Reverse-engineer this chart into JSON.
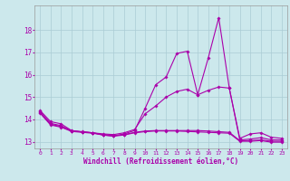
{
  "xlabel": "Windchill (Refroidissement éolien,°C)",
  "bg_color": "#cce8ec",
  "line_color": "#aa00aa",
  "grid_color": "#aaccd4",
  "ylim": [
    12.7,
    19.1
  ],
  "xlim": [
    -0.5,
    23.5
  ],
  "yticks": [
    13,
    14,
    15,
    16,
    17,
    18
  ],
  "xticks": [
    0,
    1,
    2,
    3,
    4,
    5,
    6,
    7,
    8,
    9,
    10,
    11,
    12,
    13,
    14,
    15,
    16,
    17,
    18,
    19,
    20,
    21,
    22,
    23
  ],
  "line1_x": [
    0,
    1,
    2,
    3,
    4,
    5,
    6,
    7,
    8,
    9,
    10,
    11,
    12,
    13,
    14,
    15,
    16,
    17,
    18,
    19,
    20,
    21,
    22,
    23
  ],
  "line1_y": [
    14.4,
    13.9,
    13.8,
    13.5,
    13.45,
    13.4,
    13.3,
    13.25,
    13.35,
    13.5,
    14.5,
    15.55,
    15.9,
    16.95,
    17.05,
    15.1,
    16.75,
    18.55,
    15.4,
    13.15,
    13.35,
    13.4,
    13.2,
    13.15
  ],
  "line2_x": [
    0,
    1,
    2,
    3,
    4,
    5,
    6,
    7,
    8,
    9,
    10,
    11,
    12,
    13,
    14,
    15,
    16,
    17,
    18,
    19,
    20,
    21,
    22,
    23
  ],
  "line2_y": [
    14.35,
    13.82,
    13.72,
    13.48,
    13.44,
    13.4,
    13.35,
    13.32,
    13.4,
    13.55,
    14.25,
    14.6,
    15.0,
    15.25,
    15.35,
    15.1,
    15.3,
    15.45,
    15.4,
    13.08,
    13.12,
    13.18,
    13.08,
    13.08
  ],
  "line3_x": [
    0,
    1,
    2,
    3,
    4,
    5,
    6,
    7,
    8,
    9,
    10,
    11,
    12,
    13,
    14,
    15,
    16,
    17,
    18,
    19,
    20,
    21,
    22,
    23
  ],
  "line3_y": [
    14.3,
    13.78,
    13.68,
    13.48,
    13.44,
    13.4,
    13.32,
    13.28,
    13.32,
    13.42,
    13.48,
    13.5,
    13.5,
    13.5,
    13.5,
    13.5,
    13.48,
    13.45,
    13.42,
    13.05,
    13.05,
    13.08,
    13.02,
    13.02
  ],
  "line4_x": [
    0,
    1,
    2,
    3,
    4,
    5,
    6,
    7,
    8,
    9,
    10,
    11,
    12,
    13,
    14,
    15,
    16,
    17,
    18,
    19,
    20,
    21,
    22,
    23
  ],
  "line4_y": [
    14.28,
    13.75,
    13.65,
    13.46,
    13.42,
    13.38,
    13.3,
    13.25,
    13.3,
    13.4,
    13.45,
    13.48,
    13.48,
    13.48,
    13.46,
    13.44,
    13.42,
    13.4,
    13.38,
    13.02,
    13.02,
    13.05,
    12.98,
    12.98
  ]
}
